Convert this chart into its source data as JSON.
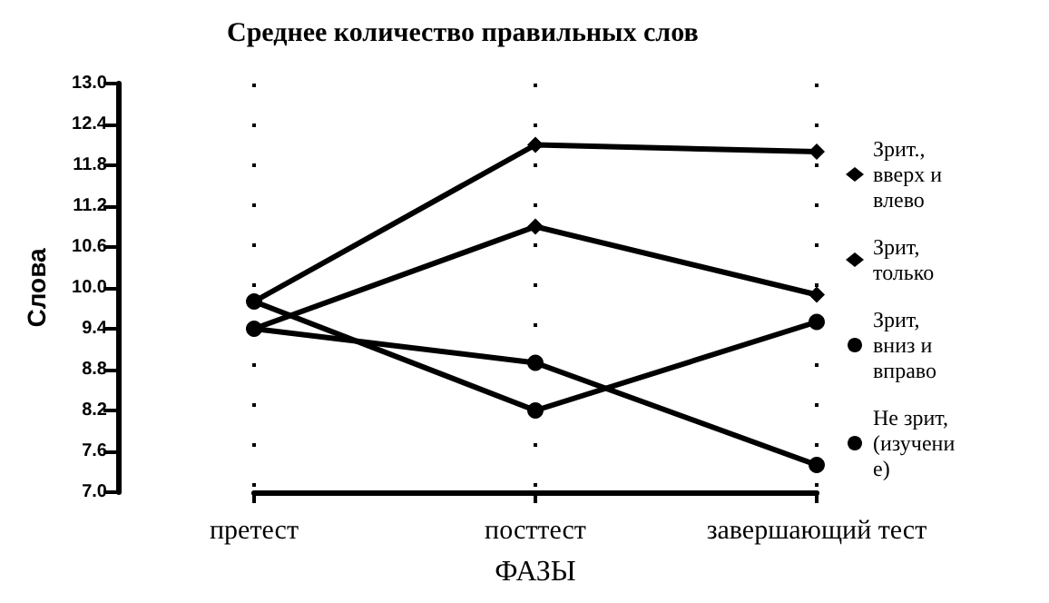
{
  "chart_data": {
    "type": "line",
    "title": "Среднее количество правильных слов",
    "xlabel": "ФАЗЫ",
    "ylabel": "Слова",
    "categories": [
      "претест",
      "посттест",
      "завершающий тест"
    ],
    "series": [
      {
        "name": "Зрит., вверх и влево",
        "color": "#000000",
        "marker": "diamond",
        "values": [
          9.8,
          12.1,
          12.0
        ]
      },
      {
        "name": "Зрит, только",
        "color": "#000000",
        "marker": "diamond",
        "values": [
          9.4,
          10.9,
          9.9
        ]
      },
      {
        "name": "Зрит, вниз и вправо",
        "color": "#000000",
        "marker": "circle",
        "values": [
          9.8,
          8.2,
          9.5
        ]
      },
      {
        "name": "Не зрит, (изучение)",
        "color": "#000000",
        "marker": "circle",
        "values": [
          9.4,
          8.9,
          7.4
        ]
      }
    ],
    "ylim": [
      7.0,
      13.0
    ],
    "yticks": [
      {
        "value": 7.0,
        "label": "7.0"
      },
      {
        "value": 7.6,
        "label": "7.6"
      },
      {
        "value": 8.2,
        "label": "8.2"
      },
      {
        "value": 8.8,
        "label": "8.8"
      },
      {
        "value": 9.4,
        "label": "9.4"
      },
      {
        "value": 10.0,
        "label": "10.0"
      },
      {
        "value": 10.6,
        "label": "10.6"
      },
      {
        "value": 11.2,
        "label": "11.2"
      },
      {
        "value": 11.8,
        "label": "11.8"
      },
      {
        "value": 12.4,
        "label": "12.4"
      },
      {
        "value": 13.0,
        "label": "13.0"
      }
    ],
    "grid": "x",
    "legend": "right",
    "line_style": "solid"
  }
}
